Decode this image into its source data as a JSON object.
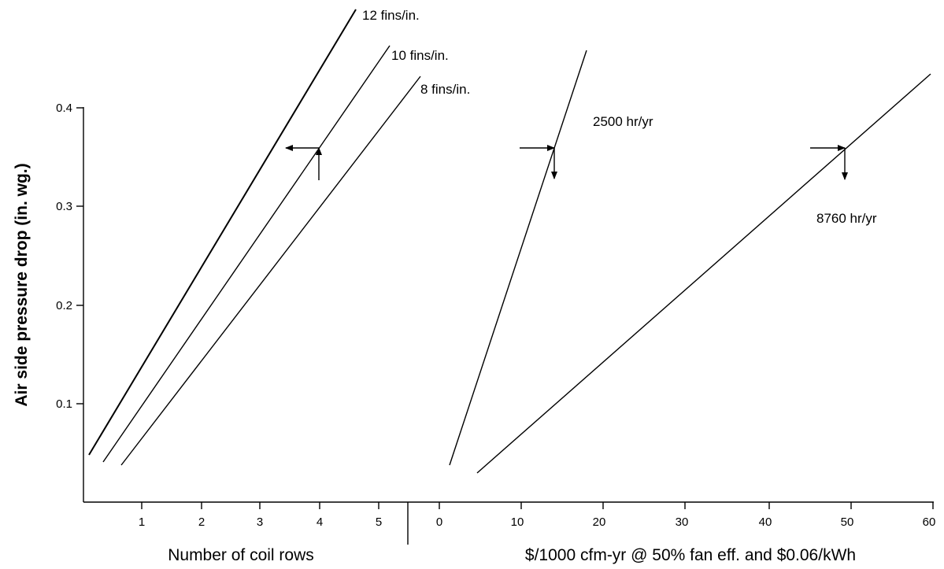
{
  "chart_data": [
    {
      "type": "line",
      "ylabel": "Air side pressure drop (in.  wg.)",
      "xlabel": "Number of coil rows",
      "x_ticks": [
        "1",
        "2",
        "3",
        "4",
        "5"
      ],
      "y_ticks": [
        "0.1",
        "0.2",
        "0.3",
        "0.4"
      ],
      "xlim": [
        0,
        5.5
      ],
      "ylim": [
        0,
        0.4
      ],
      "series": [
        {
          "name": "12 fins/in.",
          "points": [
            [
              0.1,
              0.048
            ],
            [
              4.6,
              0.505
            ]
          ]
        },
        {
          "name": "10 fins/in.",
          "points": [
            [
              0.35,
              0.042
            ],
            [
              5.2,
              0.47
            ]
          ]
        },
        {
          "name": "8 fins/in.",
          "points": [
            [
              0.65,
              0.04
            ],
            [
              5.7,
              0.44
            ]
          ]
        }
      ]
    },
    {
      "type": "line",
      "xlabel": "$/1000 cfm-yr @ 50% fan eff.  and $0.06/kWh",
      "x_ticks": [
        "0",
        "10",
        "20",
        "30",
        "40",
        "50",
        "60"
      ],
      "xlim": [
        -2,
        60
      ],
      "ylim": [
        0,
        0.4
      ],
      "series": [
        {
          "name": "2500 hr/yr",
          "points": [
            [
              1.5,
              0.04
            ],
            [
              18.9,
              0.462
            ]
          ]
        },
        {
          "name": "8760 hr/yr",
          "points": [
            [
              5.0,
              0.03
            ],
            [
              60,
              0.44
            ]
          ]
        }
      ]
    }
  ]
}
